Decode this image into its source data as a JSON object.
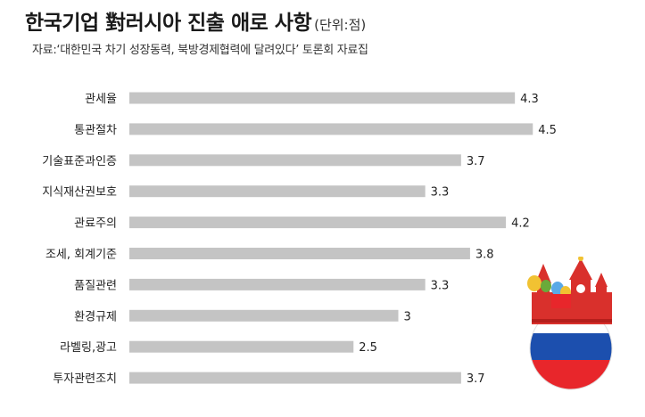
{
  "header": {
    "title": "한국기업 對러시아 진출 애로 사항",
    "unit": "(단위:점)",
    "source": "자료:‘대한민국 차기 성장동력, 북방경제협력에 달려있다’ 토론회 자료집"
  },
  "colors": {
    "bar": "#c4c4c4",
    "text": "#222222",
    "flag_white": "#ffffff",
    "flag_blue": "#1c4fae",
    "flag_red": "#e8262b",
    "kremlin_red": "#d9302c",
    "dome_gold": "#f1c232",
    "dome_green": "#6aaa3a",
    "dome_blue": "#5aa9e6"
  },
  "chart_data": {
    "type": "bar",
    "orientation": "horizontal",
    "categories": [
      "관세율",
      "통관절차",
      "기술표준과인증",
      "지식재산권보호",
      "관료주의",
      "조세, 회계기준",
      "품질관련",
      "환경규제",
      "라벨링,광고",
      "투자관련조치"
    ],
    "values": [
      4.3,
      4.5,
      3.7,
      3.3,
      4.2,
      3.8,
      3.3,
      3,
      2.5,
      3.7
    ],
    "value_labels": [
      "4.3",
      "4.5",
      "3.7",
      "3.3",
      "4.2",
      "3.8",
      "3.3",
      "3",
      "2.5",
      "3.7"
    ],
    "xlim": [
      0,
      5
    ],
    "grid": false,
    "legend": "none"
  },
  "illustration": {
    "icon": "kremlin-russia-flag-icon"
  }
}
